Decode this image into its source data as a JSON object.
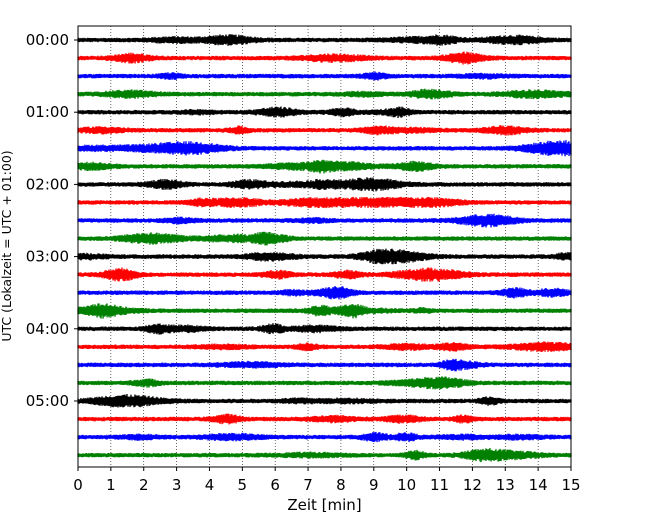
{
  "chart_data": {
    "type": "line",
    "title": "",
    "xlabel": "Zeit  [min]",
    "ylabel": "UTC (Lokalzeit = UTC + 01:00)",
    "xlim": [
      0,
      15
    ],
    "x_ticks": [
      "0",
      "1",
      "2",
      "3",
      "4",
      "5",
      "6",
      "7",
      "8",
      "9",
      "10",
      "11",
      "12",
      "13",
      "14",
      "15"
    ],
    "y_tick_labels": [
      "00:00",
      "01:00",
      "02:00",
      "03:00",
      "04:00",
      "05:00"
    ],
    "grid": "vertical dotted",
    "trace_interval_minutes": 15,
    "traces": [
      {
        "start": "00:00",
        "color": "#000000"
      },
      {
        "start": "00:15",
        "color": "#ff0000"
      },
      {
        "start": "00:30",
        "color": "#0000ff"
      },
      {
        "start": "00:45",
        "color": "#008000"
      },
      {
        "start": "01:00",
        "color": "#000000"
      },
      {
        "start": "01:15",
        "color": "#ff0000"
      },
      {
        "start": "01:30",
        "color": "#0000ff"
      },
      {
        "start": "01:45",
        "color": "#008000"
      },
      {
        "start": "02:00",
        "color": "#000000"
      },
      {
        "start": "02:15",
        "color": "#ff0000"
      },
      {
        "start": "02:30",
        "color": "#0000ff"
      },
      {
        "start": "02:45",
        "color": "#008000"
      },
      {
        "start": "03:00",
        "color": "#000000"
      },
      {
        "start": "03:15",
        "color": "#ff0000"
      },
      {
        "start": "03:30",
        "color": "#0000ff"
      },
      {
        "start": "03:45",
        "color": "#008000"
      },
      {
        "start": "04:00",
        "color": "#000000"
      },
      {
        "start": "04:15",
        "color": "#ff0000"
      },
      {
        "start": "04:30",
        "color": "#0000ff"
      },
      {
        "start": "04:45",
        "color": "#008000"
      },
      {
        "start": "05:00",
        "color": "#000000"
      },
      {
        "start": "05:15",
        "color": "#ff0000"
      },
      {
        "start": "05:30",
        "color": "#0000ff"
      },
      {
        "start": "05:45",
        "color": "#008000"
      }
    ]
  }
}
